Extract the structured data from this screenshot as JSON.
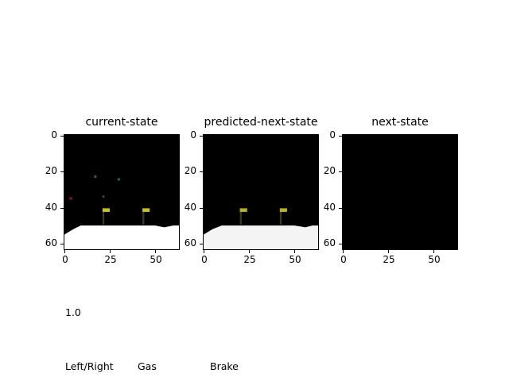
{
  "panels": [
    {
      "title": "current-state",
      "frame": "game"
    },
    {
      "title": "predicted-next-state",
      "frame": "game"
    },
    {
      "title": "next-state",
      "frame": "black"
    }
  ],
  "axes": {
    "y_ticks": [
      "0",
      "20",
      "40",
      "60"
    ],
    "x_ticks": [
      "0",
      "25",
      "50"
    ]
  },
  "action_value": "1.0",
  "controls": {
    "left_right": "Left/Right",
    "gas": "Gas",
    "brake": "Brake"
  },
  "colors": {
    "background": "#000000",
    "road": "#ffffff",
    "marker_yellow": "#c8c020"
  }
}
